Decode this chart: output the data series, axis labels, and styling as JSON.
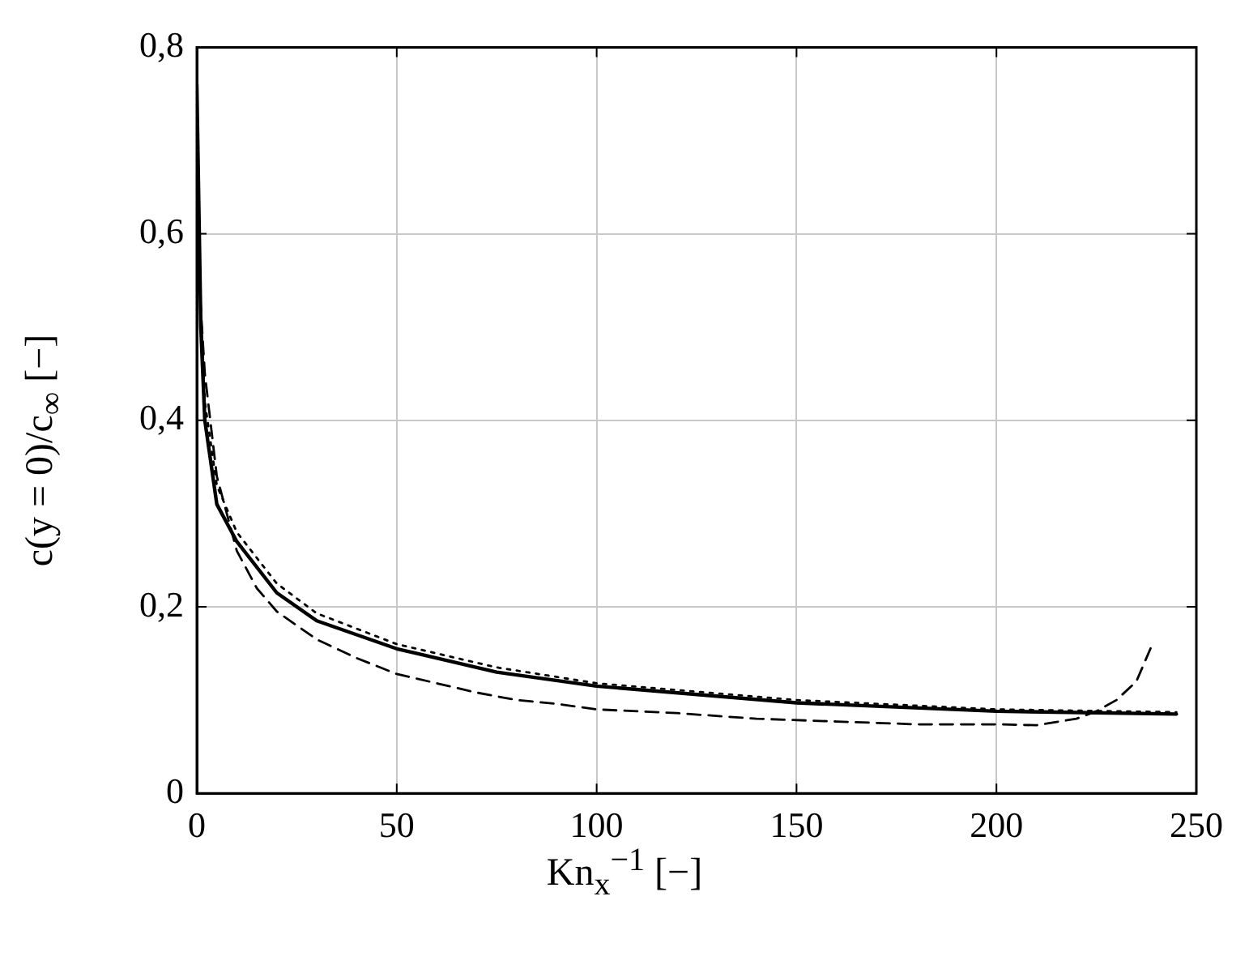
{
  "chart_data": {
    "type": "line",
    "xlabel": "Kn$_{x}$$^{−1}$ [−]",
    "ylabel": "c(y = 0)/c$_{∞}$ [−]",
    "xlim": [
      0,
      250
    ],
    "xticks": [
      0,
      50,
      100,
      150,
      200,
      250
    ],
    "ylim": [
      0,
      0.8
    ],
    "yticks": [
      0,
      {
        "value": 0.2,
        "label": "0,2"
      },
      {
        "value": 0.4,
        "label": "0,4"
      },
      {
        "value": 0.6,
        "label": "0,6"
      },
      {
        "value": 0.8,
        "label": "0,8"
      }
    ],
    "grid": true,
    "marker": "none",
    "series": [
      {
        "color": "#000000",
        "line_style": "solid",
        "x": [
          0,
          1,
          2,
          5,
          10,
          20,
          30,
          50,
          75,
          100,
          150,
          200,
          245
        ],
        "values": [
          0.76,
          0.5,
          0.4,
          0.31,
          0.27,
          0.215,
          0.185,
          0.155,
          0.13,
          0.115,
          0.097,
          0.088,
          0.085
        ]
      },
      {
        "color": "#000000",
        "line_style": "dashed",
        "x": [
          0,
          1,
          2,
          5,
          10,
          15,
          20,
          30,
          40,
          50,
          60,
          70,
          80,
          90,
          100,
          120,
          140,
          160,
          180,
          200,
          210,
          220,
          225,
          230,
          235,
          239
        ],
        "values": [
          0.62,
          0.52,
          0.45,
          0.34,
          0.26,
          0.22,
          0.195,
          0.165,
          0.145,
          0.128,
          0.118,
          0.108,
          0.1,
          0.096,
          0.09,
          0.086,
          0.08,
          0.077,
          0.074,
          0.074,
          0.073,
          0.08,
          0.088,
          0.1,
          0.12,
          0.16
        ]
      },
      {
        "color": "#000000",
        "line_style": "dotted",
        "x": [
          0,
          1,
          2,
          5,
          10,
          20,
          30,
          50,
          75,
          100,
          150,
          200,
          245
        ],
        "values": [
          0.72,
          0.52,
          0.42,
          0.33,
          0.28,
          0.225,
          0.193,
          0.16,
          0.135,
          0.118,
          0.1,
          0.09,
          0.087
        ]
      }
    ]
  }
}
